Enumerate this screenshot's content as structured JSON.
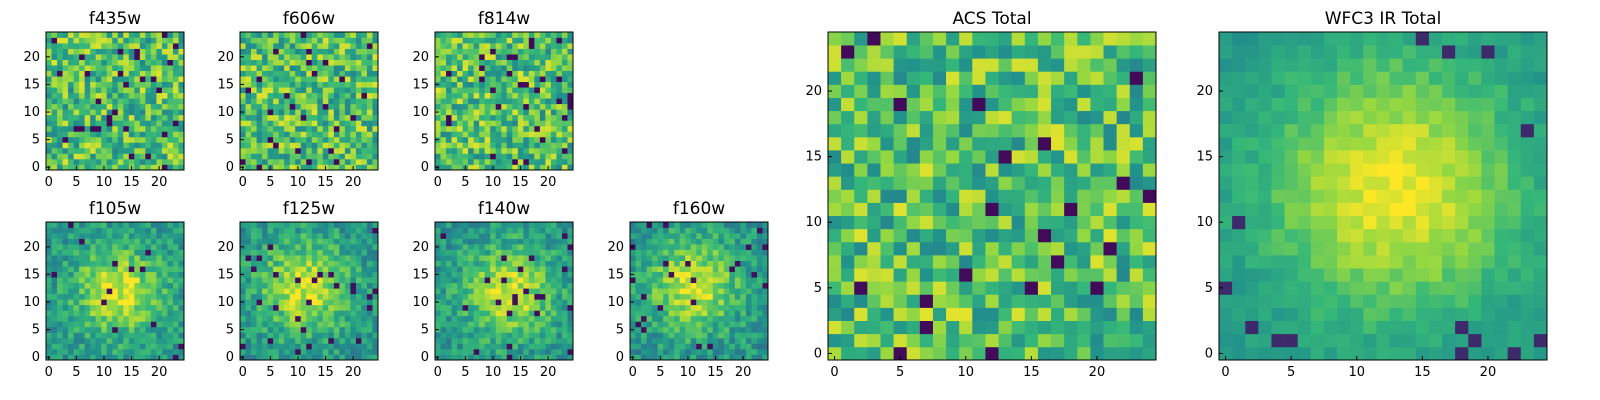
{
  "chart_data": [
    {
      "type": "heatmap",
      "title": "f435w",
      "grid_size": 25,
      "xticks": [
        0,
        5,
        10,
        15,
        20
      ],
      "yticks": [
        0,
        5,
        10,
        15,
        20
      ],
      "colormap": [
        "#440154",
        "#31688e",
        "#21918c",
        "#35b779",
        "#90d743",
        "#fde725"
      ],
      "structure": "uniform",
      "seed": 11
    },
    {
      "type": "heatmap",
      "title": "f606w",
      "grid_size": 25,
      "xticks": [
        0,
        5,
        10,
        15,
        20
      ],
      "yticks": [
        0,
        5,
        10,
        15,
        20
      ],
      "colormap": [
        "#440154",
        "#31688e",
        "#21918c",
        "#35b779",
        "#90d743",
        "#fde725"
      ],
      "structure": "uniform",
      "seed": 23
    },
    {
      "type": "heatmap",
      "title": "f814w",
      "grid_size": 25,
      "xticks": [
        0,
        5,
        10,
        15,
        20
      ],
      "yticks": [
        0,
        5,
        10,
        15,
        20
      ],
      "colormap": [
        "#440154",
        "#31688e",
        "#21918c",
        "#35b779",
        "#90d743",
        "#fde725"
      ],
      "structure": "uniform",
      "seed": 37
    },
    {
      "type": "heatmap",
      "title": "f105w",
      "grid_size": 25,
      "xticks": [
        0,
        5,
        10,
        15,
        20
      ],
      "yticks": [
        0,
        5,
        10,
        15,
        20
      ],
      "colormap": [
        "#440154",
        "#31688e",
        "#21918c",
        "#35b779",
        "#90d743",
        "#fde725"
      ],
      "structure": "peaked",
      "seed": 41
    },
    {
      "type": "heatmap",
      "title": "f125w",
      "grid_size": 25,
      "xticks": [
        0,
        5,
        10,
        15,
        20
      ],
      "yticks": [
        0,
        5,
        10,
        15,
        20
      ],
      "colormap": [
        "#440154",
        "#31688e",
        "#21918c",
        "#35b779",
        "#90d743",
        "#fde725"
      ],
      "structure": "peaked",
      "seed": 53
    },
    {
      "type": "heatmap",
      "title": "f140w",
      "grid_size": 25,
      "xticks": [
        0,
        5,
        10,
        15,
        20
      ],
      "yticks": [
        0,
        5,
        10,
        15,
        20
      ],
      "colormap": [
        "#440154",
        "#31688e",
        "#21918c",
        "#35b779",
        "#90d743",
        "#fde725"
      ],
      "structure": "peaked",
      "seed": 67
    },
    {
      "type": "heatmap",
      "title": "f160w",
      "grid_size": 25,
      "xticks": [
        0,
        5,
        10,
        15,
        20
      ],
      "yticks": [
        0,
        5,
        10,
        15,
        20
      ],
      "colormap": [
        "#440154",
        "#31688e",
        "#21918c",
        "#35b779",
        "#90d743",
        "#fde725"
      ],
      "structure": "peaked",
      "seed": 79
    },
    {
      "type": "heatmap",
      "title": "ACS Total",
      "grid_size": 25,
      "xticks": [
        0,
        5,
        10,
        15,
        20
      ],
      "yticks": [
        0,
        5,
        10,
        15,
        20
      ],
      "colormap": [
        "#440154",
        "#31688e",
        "#21918c",
        "#35b779",
        "#90d743",
        "#fde725"
      ],
      "structure": "uniform",
      "seed": 97
    },
    {
      "type": "heatmap",
      "title": "WFC3 IR Total",
      "grid_size": 25,
      "xticks": [
        0,
        5,
        10,
        15,
        20
      ],
      "yticks": [
        0,
        5,
        10,
        15,
        20
      ],
      "colormap": [
        "#440154",
        "#31688e",
        "#21918c",
        "#35b779",
        "#90d743",
        "#fde725"
      ],
      "structure": "smooth-peak",
      "seed": 109
    }
  ]
}
